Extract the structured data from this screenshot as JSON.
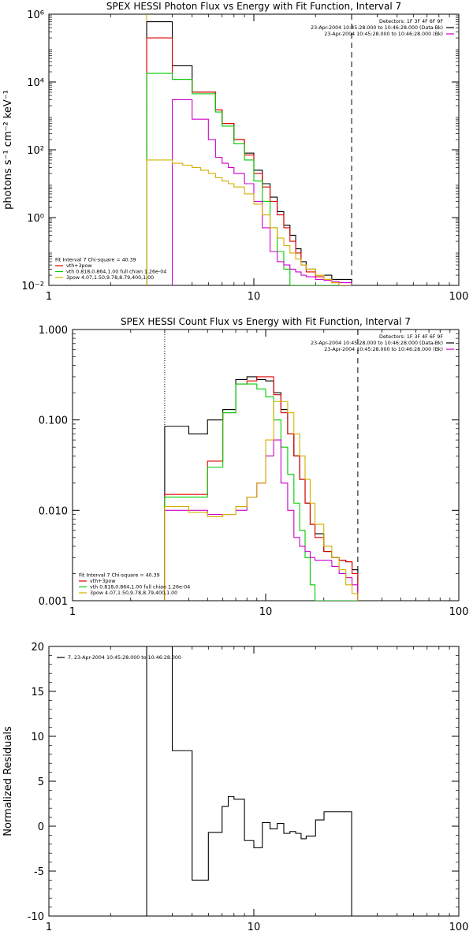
{
  "chart_data": [
    {
      "type": "line",
      "title": "SPEX HESSI Photon Flux vs Energy with Fit Function, Interval 7",
      "xlabel": "",
      "ylabel": "photons s⁻¹ cm⁻² keV⁻¹",
      "xscale": "log",
      "yscale": "log",
      "xlim": [
        1,
        100
      ],
      "ylim": [
        0.01,
        1000000
      ],
      "x_ticks": [
        {
          "value": 1,
          "label": "1"
        },
        {
          "value": 10,
          "label": "10"
        },
        {
          "value": 100,
          "label": "100"
        }
      ],
      "y_ticks": [
        {
          "value": 0.01,
          "label": "10⁻²"
        },
        {
          "value": 1,
          "label": "10⁰"
        },
        {
          "value": 100,
          "label": "10²"
        },
        {
          "value": 10000,
          "label": "10⁴"
        },
        {
          "value": 1000000,
          "label": "10⁶"
        }
      ],
      "legend_lines": [
        "Detectors: 1F 3F 4F 6F 9F",
        "23-Apr-2004 10:45:28.000 to 10:46:28.000 (Data-Bk)",
        "23-Apr-2004 10:45:28.000 to 10:46:28.000 (Bk)"
      ],
      "legend_colors": [
        "",
        "#000000",
        "#cc00cc"
      ],
      "fit_legend": [
        {
          "text": "Fit Interval  7    Chi-square = 40.39",
          "color": ""
        },
        {
          "text": "vth+3pow",
          "color": "#e00000"
        },
        {
          "text": "vth 0.818,0.864,1.00  full chian 1.26e-04",
          "color": "#00cc00"
        },
        {
          "text": "3pow 4.07,1.50,9.78,8.79,400,1.00",
          "color": "#d4b000"
        }
      ],
      "vlines": [
        {
          "x": 3,
          "style": "dotted",
          "color": "#000000"
        },
        {
          "x": 3,
          "style": "solid",
          "color": "#d4b000"
        },
        {
          "x": 30,
          "style": "dashed",
          "color": "#000000"
        }
      ],
      "series": [
        {
          "color": "#000000",
          "step": true,
          "x": [
            3,
            3.5,
            4,
            4.5,
            5,
            5.5,
            6,
            6.5,
            7,
            7.5,
            8,
            9,
            10,
            11,
            12,
            13,
            14,
            15,
            16,
            17,
            18,
            20,
            22,
            24,
            26,
            28,
            30
          ],
          "y": [
            600000,
            600000,
            30000,
            30000,
            5000,
            5000,
            5000,
            1500,
            600,
            600,
            200,
            80,
            25,
            10,
            4,
            1.5,
            0.6,
            0.3,
            0.12,
            0.05,
            0.03,
            0.02,
            0.02,
            0.015,
            0.015,
            0.015,
            null
          ]
        },
        {
          "color": "#e00000",
          "step": true,
          "x": [
            3,
            3.5,
            4,
            4.5,
            5,
            5.5,
            6,
            6.5,
            7,
            7.5,
            8,
            9,
            10,
            11,
            12,
            13,
            14,
            15,
            16,
            17,
            18,
            20,
            22,
            24,
            26,
            28,
            30
          ],
          "y": [
            200000,
            200000,
            12000,
            12000,
            5000,
            5000,
            5000,
            1500,
            600,
            600,
            200,
            70,
            20,
            8,
            3,
            1.2,
            0.5,
            0.2,
            0.09,
            0.04,
            0.025,
            0.018,
            0.015,
            0.012,
            0.01,
            0.01,
            null
          ]
        },
        {
          "color": "#00cc00",
          "step": true,
          "x": [
            3,
            3.5,
            4,
            4.5,
            5,
            5.5,
            6,
            6.5,
            7,
            7.5,
            8,
            9,
            10,
            11,
            12,
            13,
            14,
            15,
            16,
            17,
            18,
            20,
            22,
            24,
            26,
            28,
            30
          ],
          "y": [
            18000,
            18000,
            12000,
            12000,
            4500,
            4500,
            4500,
            1300,
            500,
            500,
            150,
            50,
            12,
            3,
            0.5,
            0.1,
            0.03,
            0.01,
            0.01,
            0.01,
            0.01,
            0.01,
            0.01,
            0.01,
            0.01,
            0.01,
            null
          ]
        },
        {
          "color": "#cc00cc",
          "step": true,
          "x": [
            3,
            3.5,
            4,
            4.5,
            5,
            5.5,
            6,
            6.5,
            7,
            7.5,
            8,
            9,
            10,
            11,
            12,
            13,
            14,
            15,
            16,
            17,
            18,
            20,
            22,
            24,
            26,
            28,
            30
          ],
          "y": [
            null,
            null,
            3000,
            3000,
            800,
            800,
            200,
            60,
            40,
            30,
            20,
            10,
            3,
            0.5,
            0.1,
            0.05,
            0.04,
            0.03,
            0.025,
            0.02,
            0.018,
            0.015,
            0.014,
            0.013,
            0.012,
            0.012,
            null
          ]
        },
        {
          "color": "#d4b000",
          "step": true,
          "x": [
            3,
            3.5,
            4,
            4.5,
            5,
            5.5,
            6,
            6.5,
            7,
            7.5,
            8,
            9,
            10,
            11,
            12,
            13,
            14,
            15,
            16,
            17,
            18,
            20,
            22,
            24,
            26,
            28,
            30
          ],
          "y": [
            50,
            50,
            40,
            35,
            30,
            25,
            20,
            15,
            12,
            10,
            8,
            5,
            2.5,
            1.2,
            0.5,
            0.25,
            0.15,
            0.09,
            0.06,
            0.04,
            0.03,
            0.02,
            0.015,
            0.012,
            0.01,
            0.01,
            null
          ]
        }
      ]
    },
    {
      "type": "line",
      "title": "SPEX HESSI Count Flux vs Energy with Fit Function, Interval 7",
      "xlabel": "",
      "ylabel": "",
      "xscale": "log",
      "yscale": "log",
      "xlim": [
        1,
        100
      ],
      "ylim": [
        0.001,
        1
      ],
      "x_ticks": [
        {
          "value": 1,
          "label": "1"
        },
        {
          "value": 10,
          "label": "10"
        },
        {
          "value": 100,
          "label": "100"
        }
      ],
      "y_ticks": [
        {
          "value": 0.001,
          "label": "0.001"
        },
        {
          "value": 0.01,
          "label": "0.010"
        },
        {
          "value": 0.1,
          "label": "0.100"
        },
        {
          "value": 1,
          "label": "1.000"
        }
      ],
      "legend_lines": [
        "Detectors: 1F 3F 4F 6F 9F",
        "23-Apr-2004 10:45:28.000 to 10:46:28.000 (Data-Bk)",
        "23-Apr-2004 10:45:28.000 to 10:46:28.000 (Bk)"
      ],
      "legend_colors": [
        "",
        "#000000",
        "#cc00cc"
      ],
      "fit_legend": [
        {
          "text": "Fit Interval  7    Chi-square = 40.39",
          "color": ""
        },
        {
          "text": "vth+3pow",
          "color": "#e00000"
        },
        {
          "text": "vth 0.818,0.864,1.00  full chian 1.26e-04",
          "color": "#00cc00"
        },
        {
          "text": "3pow 4.07,1.50,9.78,8.79,400,1.00",
          "color": "#d4b000"
        }
      ],
      "vlines": [
        {
          "x": 3,
          "style": "dotted",
          "color": "#000000"
        },
        {
          "x": 30,
          "style": "dashed",
          "color": "#000000"
        }
      ],
      "series": [
        {
          "color": "#000000",
          "step": true,
          "x": [
            3,
            4,
            5,
            6,
            7,
            8,
            9,
            10,
            11,
            12,
            13,
            14,
            15,
            16,
            17,
            18,
            20,
            22,
            24,
            26,
            28,
            30
          ],
          "y": [
            0.085,
            0.07,
            0.1,
            0.13,
            0.28,
            0.3,
            0.28,
            0.27,
            0.2,
            0.13,
            0.07,
            0.04,
            0.022,
            0.012,
            0.007,
            0.0055,
            0.0035,
            0.003,
            0.0028,
            0.0027,
            0.0022,
            null
          ]
        },
        {
          "color": "#e00000",
          "step": true,
          "x": [
            3,
            4,
            5,
            6,
            7,
            8,
            9,
            10,
            11,
            12,
            13,
            14,
            15,
            16,
            17,
            18,
            20,
            22,
            24,
            26,
            28,
            30
          ],
          "y": [
            0.015,
            0.015,
            0.035,
            0.12,
            0.25,
            0.27,
            0.3,
            0.3,
            0.19,
            0.12,
            0.07,
            0.04,
            0.022,
            0.012,
            0.007,
            0.005,
            0.0035,
            0.003,
            0.0028,
            0.0027,
            0.002,
            null
          ]
        },
        {
          "color": "#00cc00",
          "step": true,
          "x": [
            3,
            4,
            5,
            6,
            7,
            8,
            9,
            10,
            11,
            12,
            13,
            14,
            15,
            16,
            17,
            18,
            20,
            22,
            24,
            26,
            28,
            30
          ],
          "y": [
            0.014,
            0.014,
            0.03,
            0.12,
            0.25,
            0.25,
            0.22,
            0.18,
            0.1,
            0.05,
            0.025,
            0.012,
            0.006,
            0.003,
            0.0015,
            0.001,
            0.001,
            0.001,
            0.001,
            0.001,
            0.001,
            null
          ]
        },
        {
          "color": "#cc00cc",
          "step": true,
          "x": [
            3,
            4,
            5,
            6,
            7,
            8,
            9,
            10,
            11,
            12,
            13,
            14,
            15,
            16,
            17,
            18,
            20,
            22,
            24,
            26,
            28,
            30
          ],
          "y": [
            0.01,
            0.01,
            0.009,
            0.009,
            0.01,
            0.014,
            0.02,
            0.04,
            0.06,
            0.02,
            0.01,
            0.005,
            0.004,
            0.0035,
            0.003,
            0.0028,
            0.0028,
            0.0024,
            0.002,
            0.0018,
            0.0015,
            null
          ]
        },
        {
          "color": "#d4b000",
          "step": true,
          "x": [
            3,
            4,
            5,
            6,
            7,
            8,
            9,
            10,
            11,
            12,
            13,
            14,
            15,
            16,
            17,
            18,
            20,
            22,
            24,
            26,
            28,
            30
          ],
          "y": [
            0.011,
            0.0095,
            0.0085,
            0.009,
            0.011,
            0.014,
            0.02,
            0.06,
            0.16,
            0.16,
            0.12,
            0.07,
            0.04,
            0.022,
            0.012,
            0.007,
            0.004,
            0.003,
            0.0022,
            0.0015,
            0.0012,
            null
          ]
        }
      ]
    },
    {
      "type": "line",
      "title": "",
      "xlabel": "",
      "ylabel": "Normalized Residuals",
      "xscale": "log",
      "yscale": "linear",
      "xlim": [
        1,
        100
      ],
      "ylim": [
        -10,
        20
      ],
      "x_ticks": [
        {
          "value": 1,
          "label": "1"
        },
        {
          "value": 10,
          "label": "10"
        },
        {
          "value": 100,
          "label": "100"
        }
      ],
      "y_ticks": [
        {
          "value": -10,
          "label": "-10"
        },
        {
          "value": -5,
          "label": "-5"
        },
        {
          "value": 0,
          "label": "0"
        },
        {
          "value": 5,
          "label": "5"
        },
        {
          "value": 10,
          "label": "10"
        },
        {
          "value": 15,
          "label": "15"
        },
        {
          "value": 20,
          "label": "20"
        }
      ],
      "legend_lines": [
        "7. 23-Apr-2004 10:45:28.000 to 10:46:28.000"
      ],
      "legend_colors": [
        "#000000"
      ],
      "fit_legend": [],
      "vlines": [],
      "series": [
        {
          "color": "#000000",
          "step": true,
          "baseline": -10,
          "x": [
            3,
            3.5,
            4,
            4.5,
            5,
            5.5,
            6,
            6.5,
            7,
            7.5,
            8,
            9,
            10,
            11,
            12,
            13,
            14,
            15,
            16,
            17,
            18,
            20,
            22,
            24,
            26,
            28,
            30
          ],
          "y": [
            20,
            20,
            8.4,
            8.4,
            -6,
            -6,
            -0.7,
            -0.7,
            2.2,
            3.3,
            3,
            -1.6,
            -2.4,
            0.4,
            -0.3,
            0.3,
            -0.8,
            -0.6,
            -0.8,
            -1.4,
            -1.1,
            0.7,
            1.6,
            1.6,
            1.6,
            1.6,
            null
          ]
        }
      ]
    }
  ]
}
